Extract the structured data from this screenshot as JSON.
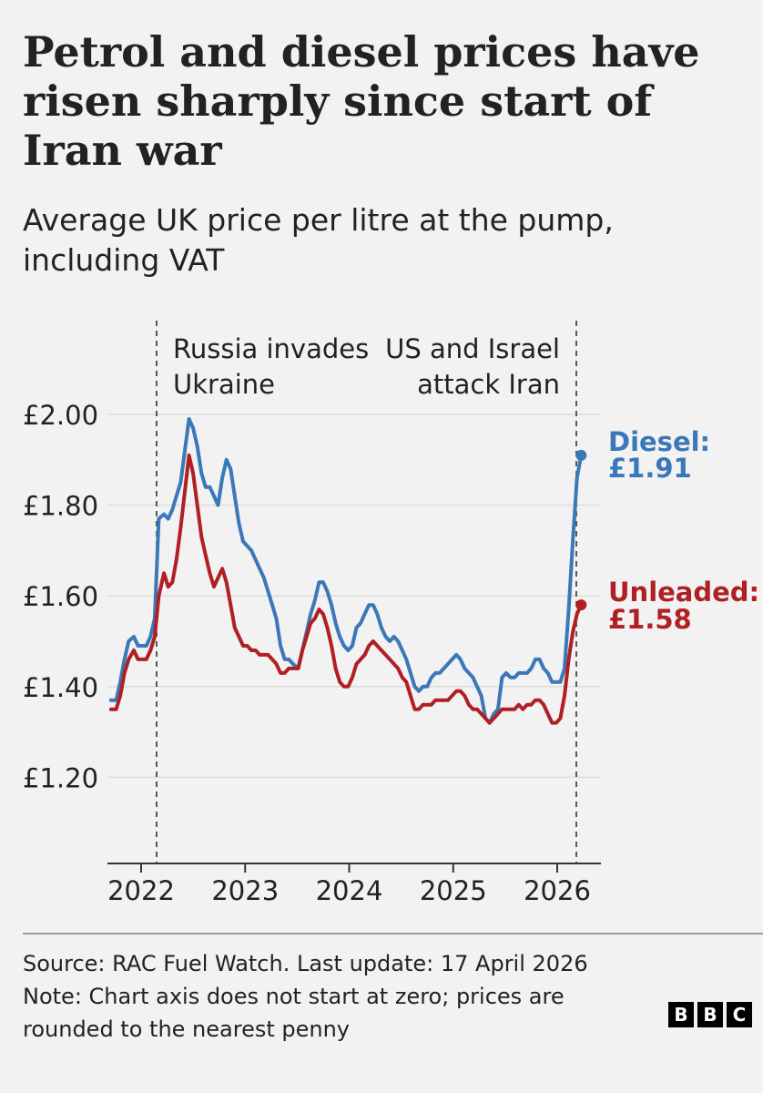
{
  "header": {
    "title": "Petrol and diesel prices have risen sharply since start of Iran war",
    "subtitle": "Average UK price per litre at the pump, including VAT"
  },
  "chart_data": {
    "type": "line",
    "title": "Petrol and diesel prices have risen sharply since start of Iran war",
    "subtitle": "Average UK price per litre at the pump, including VAT",
    "xlabel": "",
    "ylabel": "",
    "xlim": [
      2021.7,
      2026.4
    ],
    "ylim": [
      1.0,
      2.0
    ],
    "yticks": [
      2.0,
      1.8,
      1.6,
      1.4,
      1.2
    ],
    "ytick_labels": [
      "£2.00",
      "£1.80",
      "£1.60",
      "£1.40",
      "£1.20"
    ],
    "xticks": [
      2022,
      2023,
      2024,
      2025,
      2026
    ],
    "xtick_labels": [
      "2022",
      "2023",
      "2024",
      "2025",
      "2026"
    ],
    "grid": true,
    "annotations": [
      {
        "x": 2022.15,
        "line1": "Russia invades",
        "line2": "Ukraine",
        "align": "start"
      },
      {
        "x": 2026.15,
        "line1": "US and Israel",
        "line2": "attack Iran",
        "align": "end"
      }
    ],
    "series": [
      {
        "name": "Diesel",
        "color": "#3b78b8",
        "end_label": "Diesel:",
        "end_value": "£1.91",
        "points": [
          [
            2021.71,
            1.37
          ],
          [
            2021.76,
            1.37
          ],
          [
            2021.8,
            1.41
          ],
          [
            2021.84,
            1.46
          ],
          [
            2021.88,
            1.5
          ],
          [
            2021.93,
            1.51
          ],
          [
            2021.97,
            1.49
          ],
          [
            2022.01,
            1.49
          ],
          [
            2022.05,
            1.49
          ],
          [
            2022.09,
            1.51
          ],
          [
            2022.13,
            1.55
          ],
          [
            2022.17,
            1.77
          ],
          [
            2022.22,
            1.78
          ],
          [
            2022.26,
            1.77
          ],
          [
            2022.3,
            1.79
          ],
          [
            2022.34,
            1.82
          ],
          [
            2022.38,
            1.85
          ],
          [
            2022.42,
            1.92
          ],
          [
            2022.46,
            1.99
          ],
          [
            2022.5,
            1.97
          ],
          [
            2022.54,
            1.93
          ],
          [
            2022.58,
            1.87
          ],
          [
            2022.62,
            1.84
          ],
          [
            2022.66,
            1.84
          ],
          [
            2022.7,
            1.82
          ],
          [
            2022.74,
            1.8
          ],
          [
            2022.78,
            1.86
          ],
          [
            2022.82,
            1.9
          ],
          [
            2022.86,
            1.88
          ],
          [
            2022.9,
            1.82
          ],
          [
            2022.94,
            1.76
          ],
          [
            2022.98,
            1.72
          ],
          [
            2023.02,
            1.71
          ],
          [
            2023.06,
            1.7
          ],
          [
            2023.1,
            1.68
          ],
          [
            2023.14,
            1.66
          ],
          [
            2023.18,
            1.64
          ],
          [
            2023.22,
            1.61
          ],
          [
            2023.26,
            1.58
          ],
          [
            2023.3,
            1.55
          ],
          [
            2023.34,
            1.49
          ],
          [
            2023.38,
            1.46
          ],
          [
            2023.42,
            1.46
          ],
          [
            2023.46,
            1.45
          ],
          [
            2023.51,
            1.44
          ],
          [
            2023.55,
            1.48
          ],
          [
            2023.59,
            1.52
          ],
          [
            2023.63,
            1.56
          ],
          [
            2023.67,
            1.59
          ],
          [
            2023.71,
            1.63
          ],
          [
            2023.75,
            1.63
          ],
          [
            2023.79,
            1.61
          ],
          [
            2023.83,
            1.58
          ],
          [
            2023.87,
            1.54
          ],
          [
            2023.91,
            1.51
          ],
          [
            2023.95,
            1.49
          ],
          [
            2023.99,
            1.48
          ],
          [
            2024.03,
            1.49
          ],
          [
            2024.07,
            1.53
          ],
          [
            2024.11,
            1.54
          ],
          [
            2024.15,
            1.56
          ],
          [
            2024.19,
            1.58
          ],
          [
            2024.23,
            1.58
          ],
          [
            2024.27,
            1.56
          ],
          [
            2024.31,
            1.53
          ],
          [
            2024.35,
            1.51
          ],
          [
            2024.39,
            1.5
          ],
          [
            2024.43,
            1.51
          ],
          [
            2024.47,
            1.5
          ],
          [
            2024.51,
            1.48
          ],
          [
            2024.55,
            1.46
          ],
          [
            2024.59,
            1.43
          ],
          [
            2024.63,
            1.4
          ],
          [
            2024.67,
            1.39
          ],
          [
            2024.71,
            1.4
          ],
          [
            2024.75,
            1.4
          ],
          [
            2024.79,
            1.42
          ],
          [
            2024.83,
            1.43
          ],
          [
            2024.87,
            1.43
          ],
          [
            2024.91,
            1.44
          ],
          [
            2024.95,
            1.45
          ],
          [
            2024.99,
            1.46
          ],
          [
            2025.03,
            1.47
          ],
          [
            2025.07,
            1.46
          ],
          [
            2025.11,
            1.44
          ],
          [
            2025.15,
            1.43
          ],
          [
            2025.19,
            1.42
          ],
          [
            2025.23,
            1.4
          ],
          [
            2025.27,
            1.38
          ],
          [
            2025.31,
            1.33
          ],
          [
            2025.35,
            1.32
          ],
          [
            2025.39,
            1.34
          ],
          [
            2025.43,
            1.35
          ],
          [
            2025.47,
            1.42
          ],
          [
            2025.51,
            1.43
          ],
          [
            2025.55,
            1.42
          ],
          [
            2025.59,
            1.42
          ],
          [
            2025.63,
            1.43
          ],
          [
            2025.67,
            1.43
          ],
          [
            2025.71,
            1.43
          ],
          [
            2025.75,
            1.44
          ],
          [
            2025.79,
            1.46
          ],
          [
            2025.83,
            1.46
          ],
          [
            2025.87,
            1.44
          ],
          [
            2025.91,
            1.43
          ],
          [
            2025.95,
            1.41
          ],
          [
            2025.99,
            1.41
          ],
          [
            2026.03,
            1.41
          ],
          [
            2026.07,
            1.44
          ],
          [
            2026.11,
            1.57
          ],
          [
            2026.15,
            1.72
          ],
          [
            2026.19,
            1.86
          ],
          [
            2026.23,
            1.91
          ]
        ]
      },
      {
        "name": "Unleaded",
        "color": "#b01f24",
        "end_label": "Unleaded:",
        "end_value": "£1.58",
        "points": [
          [
            2021.71,
            1.35
          ],
          [
            2021.76,
            1.35
          ],
          [
            2021.8,
            1.38
          ],
          [
            2021.84,
            1.43
          ],
          [
            2021.88,
            1.46
          ],
          [
            2021.93,
            1.48
          ],
          [
            2021.97,
            1.46
          ],
          [
            2022.01,
            1.46
          ],
          [
            2022.05,
            1.46
          ],
          [
            2022.09,
            1.48
          ],
          [
            2022.13,
            1.51
          ],
          [
            2022.17,
            1.6
          ],
          [
            2022.22,
            1.65
          ],
          [
            2022.26,
            1.62
          ],
          [
            2022.3,
            1.63
          ],
          [
            2022.34,
            1.68
          ],
          [
            2022.38,
            1.75
          ],
          [
            2022.42,
            1.83
          ],
          [
            2022.46,
            1.91
          ],
          [
            2022.5,
            1.87
          ],
          [
            2022.54,
            1.8
          ],
          [
            2022.58,
            1.73
          ],
          [
            2022.62,
            1.69
          ],
          [
            2022.66,
            1.65
          ],
          [
            2022.7,
            1.62
          ],
          [
            2022.74,
            1.64
          ],
          [
            2022.78,
            1.66
          ],
          [
            2022.82,
            1.63
          ],
          [
            2022.86,
            1.58
          ],
          [
            2022.9,
            1.53
          ],
          [
            2022.94,
            1.51
          ],
          [
            2022.98,
            1.49
          ],
          [
            2023.02,
            1.49
          ],
          [
            2023.06,
            1.48
          ],
          [
            2023.1,
            1.48
          ],
          [
            2023.14,
            1.47
          ],
          [
            2023.18,
            1.47
          ],
          [
            2023.22,
            1.47
          ],
          [
            2023.26,
            1.46
          ],
          [
            2023.3,
            1.45
          ],
          [
            2023.34,
            1.43
          ],
          [
            2023.38,
            1.43
          ],
          [
            2023.42,
            1.44
          ],
          [
            2023.46,
            1.44
          ],
          [
            2023.51,
            1.44
          ],
          [
            2023.55,
            1.48
          ],
          [
            2023.59,
            1.51
          ],
          [
            2023.63,
            1.54
          ],
          [
            2023.67,
            1.55
          ],
          [
            2023.71,
            1.57
          ],
          [
            2023.75,
            1.56
          ],
          [
            2023.79,
            1.53
          ],
          [
            2023.83,
            1.49
          ],
          [
            2023.87,
            1.44
          ],
          [
            2023.91,
            1.41
          ],
          [
            2023.95,
            1.4
          ],
          [
            2023.99,
            1.4
          ],
          [
            2024.03,
            1.42
          ],
          [
            2024.07,
            1.45
          ],
          [
            2024.11,
            1.46
          ],
          [
            2024.15,
            1.47
          ],
          [
            2024.19,
            1.49
          ],
          [
            2024.23,
            1.5
          ],
          [
            2024.27,
            1.49
          ],
          [
            2024.31,
            1.48
          ],
          [
            2024.35,
            1.47
          ],
          [
            2024.39,
            1.46
          ],
          [
            2024.43,
            1.45
          ],
          [
            2024.47,
            1.44
          ],
          [
            2024.51,
            1.42
          ],
          [
            2024.55,
            1.41
          ],
          [
            2024.59,
            1.38
          ],
          [
            2024.63,
            1.35
          ],
          [
            2024.67,
            1.35
          ],
          [
            2024.71,
            1.36
          ],
          [
            2024.75,
            1.36
          ],
          [
            2024.79,
            1.36
          ],
          [
            2024.83,
            1.37
          ],
          [
            2024.87,
            1.37
          ],
          [
            2024.91,
            1.37
          ],
          [
            2024.95,
            1.37
          ],
          [
            2024.99,
            1.38
          ],
          [
            2025.03,
            1.39
          ],
          [
            2025.07,
            1.39
          ],
          [
            2025.11,
            1.38
          ],
          [
            2025.15,
            1.36
          ],
          [
            2025.19,
            1.35
          ],
          [
            2025.23,
            1.35
          ],
          [
            2025.27,
            1.34
          ],
          [
            2025.31,
            1.33
          ],
          [
            2025.35,
            1.32
          ],
          [
            2025.39,
            1.33
          ],
          [
            2025.43,
            1.34
          ],
          [
            2025.47,
            1.35
          ],
          [
            2025.51,
            1.35
          ],
          [
            2025.55,
            1.35
          ],
          [
            2025.59,
            1.35
          ],
          [
            2025.63,
            1.36
          ],
          [
            2025.67,
            1.35
          ],
          [
            2025.71,
            1.36
          ],
          [
            2025.75,
            1.36
          ],
          [
            2025.79,
            1.37
          ],
          [
            2025.83,
            1.37
          ],
          [
            2025.87,
            1.36
          ],
          [
            2025.91,
            1.34
          ],
          [
            2025.95,
            1.32
          ],
          [
            2025.99,
            1.32
          ],
          [
            2026.03,
            1.33
          ],
          [
            2026.07,
            1.38
          ],
          [
            2026.11,
            1.46
          ],
          [
            2026.15,
            1.52
          ],
          [
            2026.19,
            1.56
          ],
          [
            2026.23,
            1.58
          ]
        ]
      }
    ]
  },
  "footer": {
    "source": "Source: RAC Fuel Watch. Last update: 17 April 2026",
    "note": "Note: Chart axis does not start at zero; prices are rounded to the nearest penny",
    "logo_letters": [
      "B",
      "B",
      "C"
    ]
  }
}
